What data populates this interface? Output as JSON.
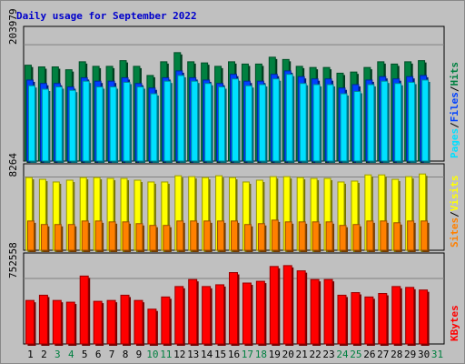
{
  "chart_data": {
    "type": "bar",
    "title": "Daily usage for September 2022",
    "colors": {
      "background": "#c0c0c0",
      "title": "#0000cc",
      "hits": "#008040",
      "files": "#0040ff",
      "pages": "#00e0ff",
      "visits": "#ffff00",
      "sites": "#ff8000",
      "kbytes": "#ff0000",
      "weekday_label": "#000000",
      "weekend_label": "#008040"
    },
    "categories": [
      "1",
      "2",
      "3",
      "4",
      "5",
      "6",
      "7",
      "8",
      "9",
      "10",
      "11",
      "12",
      "13",
      "14",
      "15",
      "16",
      "17",
      "18",
      "19",
      "20",
      "21",
      "22",
      "23",
      "24",
      "25",
      "26",
      "27",
      "28",
      "29",
      "30",
      "31"
    ],
    "weekend_days": [
      3,
      4,
      10,
      11,
      17,
      18,
      24,
      25,
      31
    ],
    "panels": [
      {
        "id": "hits-files-pages",
        "ytick_label": "203979",
        "ytick_value": 203979,
        "ymax": 236000,
        "legend": [
          "Pages",
          "/",
          "Files",
          "/",
          "Hits"
        ],
        "series": [
          {
            "name": "Hits",
            "values": [
              168000,
              165000,
              165000,
              160000,
              174000,
              166000,
              166000,
              176000,
              166000,
              150000,
              174000,
              190000,
              174000,
              172000,
              166000,
              174000,
              170000,
              170000,
              182000,
              178000,
              166000,
              164000,
              164000,
              154000,
              156000,
              164000,
              174000,
              170000,
              174000,
              176000,
              null
            ]
          },
          {
            "name": "Files",
            "values": [
              142000,
              136000,
              136000,
              130000,
              146000,
              140000,
              140000,
              146000,
              136000,
              128000,
              146000,
              158000,
              146000,
              142000,
              136000,
              152000,
              140000,
              140000,
              152000,
              158000,
              148000,
              144000,
              144000,
              128000,
              134000,
              142000,
              148000,
              144000,
              148000,
              150000,
              null
            ]
          },
          {
            "name": "Pages",
            "values": [
              132000,
              126000,
              130000,
              124000,
              140000,
              130000,
              130000,
              138000,
              130000,
              118000,
              140000,
              150000,
              140000,
              136000,
              130000,
              144000,
              132000,
              134000,
              144000,
              152000,
              136000,
              134000,
              134000,
              118000,
              122000,
              134000,
              140000,
              136000,
              138000,
              142000,
              null
            ]
          }
        ]
      },
      {
        "id": "visits-sites",
        "ytick_label": "8264",
        "ytick_value": 8264,
        "ymax": 9750,
        "legend": [
          "Sites",
          "/",
          "Visits"
        ],
        "series": [
          {
            "name": "Visits",
            "values": [
              8200,
              8000,
              7700,
              7900,
              8200,
              8200,
              8100,
              8100,
              7900,
              7700,
              7700,
              8400,
              8300,
              8200,
              8400,
              8200,
              7700,
              7900,
              8300,
              8300,
              8200,
              8100,
              8100,
              7700,
              7800,
              8500,
              8500,
              8000,
              8300,
              8600,
              null
            ]
          },
          {
            "name": "Sites",
            "values": [
              3300,
              2900,
              2900,
              2900,
              3300,
              3300,
              3200,
              3200,
              3000,
              2800,
              2800,
              3300,
              3300,
              3300,
              3300,
              3300,
              2900,
              3000,
              3400,
              3200,
              3200,
              3200,
              3200,
              2800,
              2900,
              3300,
              3300,
              3100,
              3300,
              3300,
              null
            ]
          }
        ]
      },
      {
        "id": "kbytes",
        "ytick_label": "752558",
        "ytick_value": 752558,
        "ymax": 1045000,
        "legend": [
          "KBytes"
        ],
        "series": [
          {
            "name": "KBytes",
            "values": [
              500000,
              560000,
              500000,
              480000,
              780000,
              490000,
              500000,
              560000,
              500000,
              400000,
              540000,
              660000,
              740000,
              660000,
              680000,
              820000,
              700000,
              720000,
              890000,
              900000,
              840000,
              740000,
              740000,
              560000,
              590000,
              540000,
              580000,
              660000,
              650000,
              620000,
              null
            ]
          }
        ]
      }
    ]
  }
}
